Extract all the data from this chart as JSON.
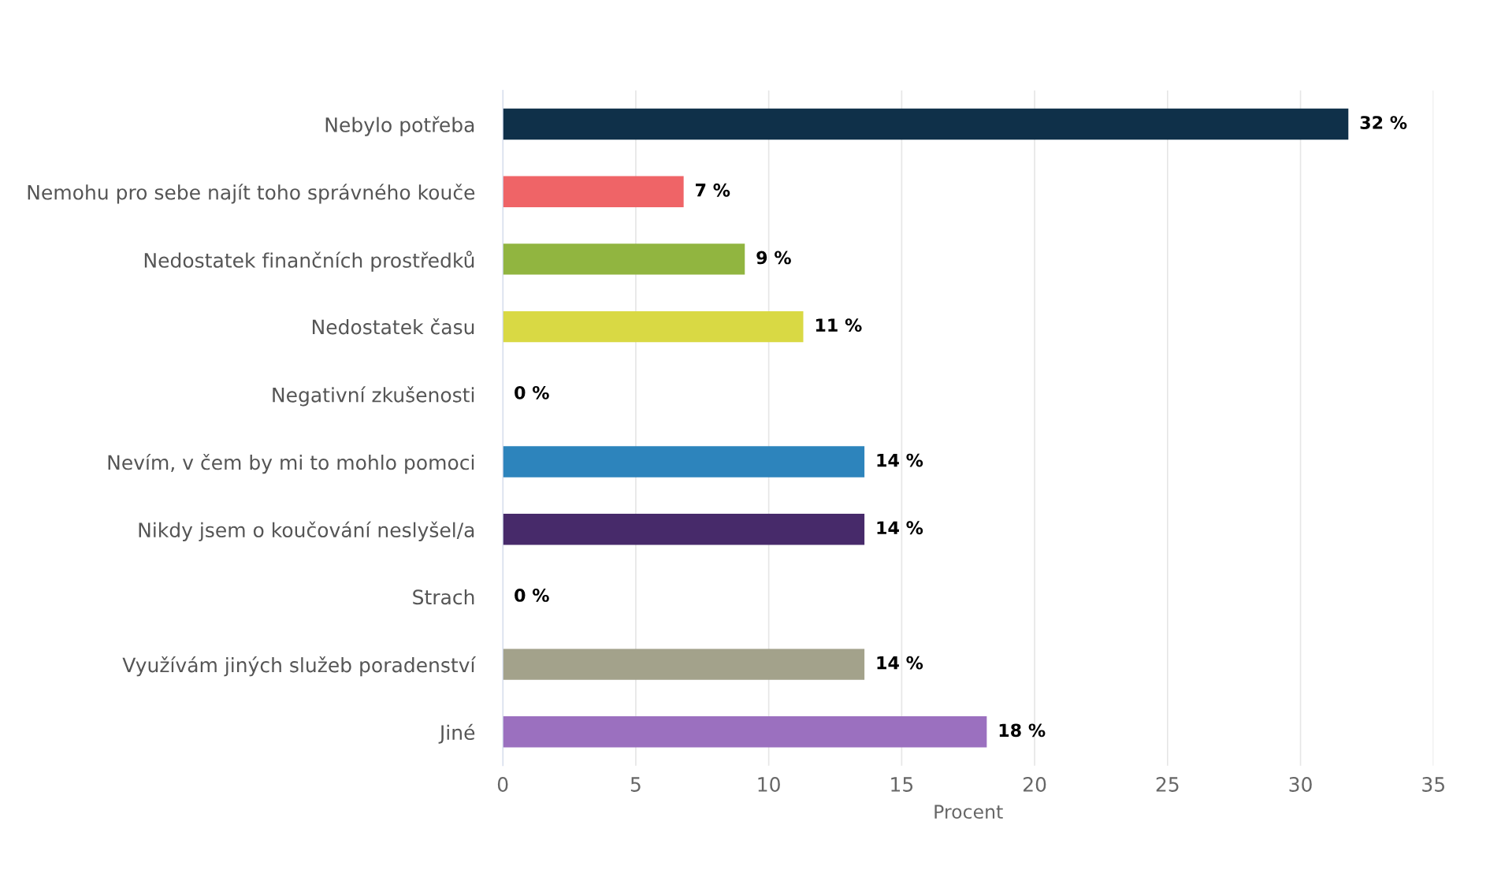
{
  "chart_data": {
    "type": "bar",
    "orientation": "horizontal",
    "xlabel": "Procent",
    "categories": [
      "Nebylo potřeba",
      "Nemohu pro sebe najít toho správného kouče",
      "Nedostatek finančních prostředků",
      "Nedostatek času",
      "Negativní zkušenosti",
      "Nevím, v čem by mi to mohlo pomoci",
      "Nikdy jsem o koučování neslyšel/a",
      "Strach",
      "Využívám jiných služeb poradenství",
      "Jiné"
    ],
    "values": [
      31.8,
      6.8,
      9.1,
      11.3,
      0,
      13.6,
      13.6,
      0,
      13.6,
      18.2
    ],
    "colors": [
      "#0f3049",
      "#ef6467",
      "#91b540",
      "#d9d944",
      "#888888",
      "#2d84bc",
      "#472a6a",
      "#888888",
      "#a3a28b",
      "#9b70bf"
    ],
    "value_labels": [
      "32 %",
      "7 %",
      "9 %",
      "11 %",
      "0 %",
      "14 %",
      "14 %",
      "0 %",
      "14 %",
      "18 %"
    ],
    "xlim": [
      0,
      35
    ],
    "xticks": [
      0,
      5,
      10,
      15,
      20,
      25,
      30,
      35
    ],
    "grid": "x",
    "legend": false
  }
}
